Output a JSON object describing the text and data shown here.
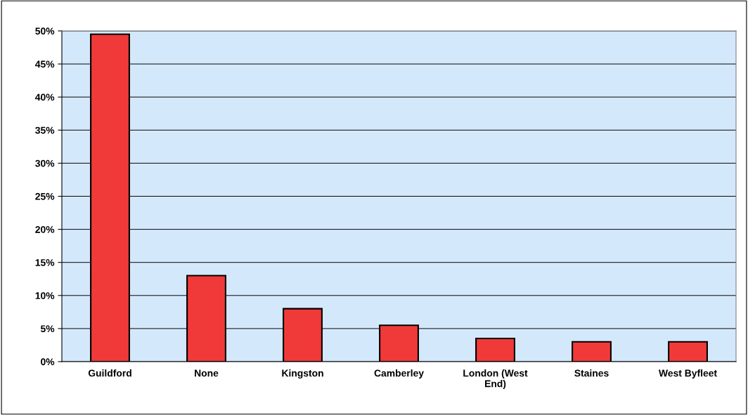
{
  "chart_data": {
    "type": "bar",
    "categories": [
      "Guildford",
      "None",
      "Kingston",
      "Camberley",
      "London (West\nEnd)",
      "Staines",
      "West Byfleet"
    ],
    "values": [
      49.5,
      13,
      8,
      5.5,
      3.5,
      3,
      3
    ],
    "color": "#f03a3a",
    "ylim": [
      0,
      50
    ],
    "yticks": [
      {
        "value": 0,
        "label": "0%"
      },
      {
        "value": 5,
        "label": "5%"
      },
      {
        "value": 10,
        "label": "10%"
      },
      {
        "value": 15,
        "label": "15%"
      },
      {
        "value": 20,
        "label": "20%"
      },
      {
        "value": 25,
        "label": "25%"
      },
      {
        "value": 30,
        "label": "30%"
      },
      {
        "value": 35,
        "label": "35%"
      },
      {
        "value": 40,
        "label": "40%"
      },
      {
        "value": 45,
        "label": "45%"
      },
      {
        "value": 50,
        "label": "50%"
      }
    ],
    "grid": "y",
    "legend": false
  }
}
